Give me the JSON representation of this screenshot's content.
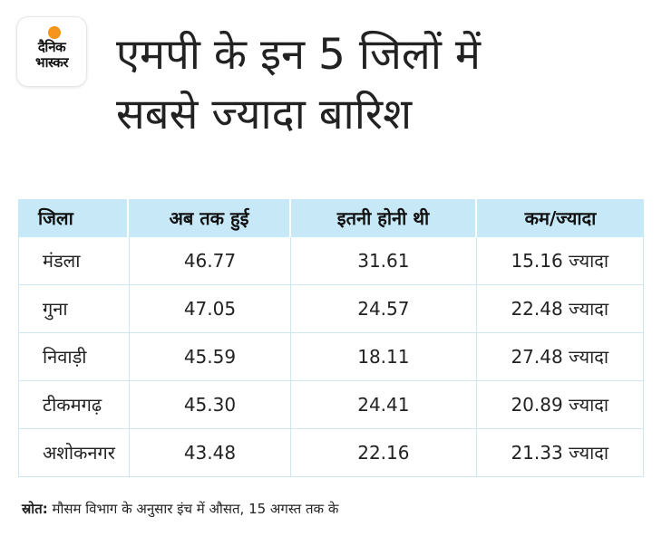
{
  "logo": {
    "line1": "दैनिक",
    "line2": "भास्कर"
  },
  "title": {
    "line1": "एमपी के इन 5 जिलों में",
    "line2": "सबसे ज्यादा बारिश"
  },
  "table": {
    "headers": [
      "जिला",
      "अब तक हुई",
      "इतनी होनी थी",
      "कम/ज्यादा"
    ],
    "rows": [
      [
        "मंडला",
        "46.77",
        "31.61",
        "15.16 ज्यादा"
      ],
      [
        "गुना",
        "47.05",
        "24.57",
        "22.48 ज्यादा"
      ],
      [
        "निवाड़ी",
        "45.59",
        "18.11",
        "27.48 ज्यादा"
      ],
      [
        "टीकमगढ़",
        "45.30",
        "24.41",
        "20.89 ज्यादा"
      ],
      [
        "अशोकनगर",
        "43.48",
        "22.16",
        "21.33 ज्यादा"
      ]
    ]
  },
  "source": {
    "label": "स्रोत:",
    "text": " मौसम विभाग के अनुसार इंच में औसत, 15 अगस्त तक के"
  },
  "colors": {
    "header_bg": "#c6e8f7",
    "logo_accent": "#f7941d"
  }
}
